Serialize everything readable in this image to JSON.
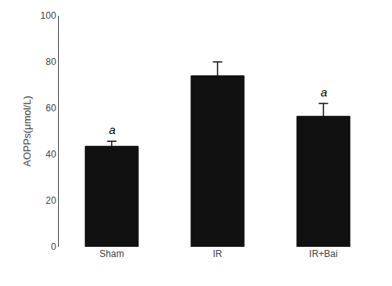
{
  "chart_data": {
    "type": "bar",
    "categories": [
      "Sham",
      "IR",
      "IR+Bai"
    ],
    "values": [
      43.5,
      74.0,
      56.5
    ],
    "errors": [
      2.2,
      6.0,
      5.5
    ],
    "color": "#111111",
    "ylabel": "AOPPs(μmol/L)",
    "ylim": [
      0,
      100
    ],
    "yticks": [
      0,
      20,
      40,
      60,
      80,
      100
    ],
    "annotations": [
      {
        "text": "a",
        "category": "Sham"
      },
      {
        "text": "a",
        "category": "IR+Bai"
      }
    ],
    "grid": false
  }
}
